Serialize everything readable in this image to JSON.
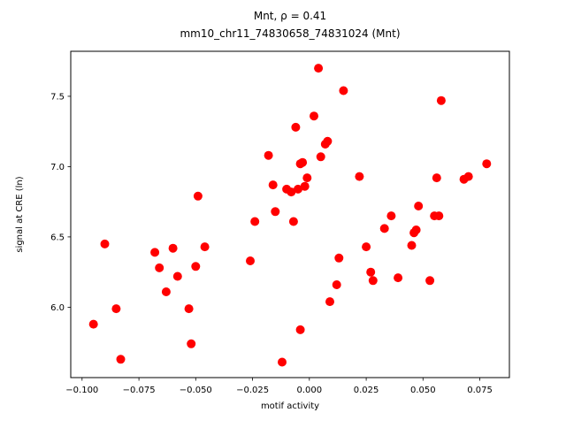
{
  "chart_data": {
    "type": "scatter",
    "title_line1": "Mnt, ρ = 0.41",
    "title_line2": "mm10_chr11_74830658_74831024 (Mnt)",
    "xlabel": "motif activity",
    "ylabel": "signal at CRE (ln)",
    "xlim": [
      -0.105,
      0.088
    ],
    "ylim": [
      5.5,
      7.82
    ],
    "xticks": [
      -0.1,
      -0.075,
      -0.05,
      -0.025,
      0.0,
      0.025,
      0.05,
      0.075
    ],
    "xtick_labels": [
      "−0.100",
      "−0.075",
      "−0.050",
      "−0.025",
      "0.000",
      "0.025",
      "0.050",
      "0.075"
    ],
    "yticks": [
      6.0,
      6.5,
      7.0,
      7.5
    ],
    "ytick_labels": [
      "6.0",
      "6.5",
      "7.0",
      "7.5"
    ],
    "legend": "none",
    "grid": false,
    "marker_color": "#ff0000",
    "marker_radius": 5,
    "points": [
      [
        -0.095,
        5.88
      ],
      [
        -0.09,
        6.45
      ],
      [
        -0.085,
        5.99
      ],
      [
        -0.083,
        5.63
      ],
      [
        -0.068,
        6.39
      ],
      [
        -0.066,
        6.28
      ],
      [
        -0.063,
        6.11
      ],
      [
        -0.06,
        6.42
      ],
      [
        -0.058,
        6.22
      ],
      [
        -0.053,
        5.99
      ],
      [
        -0.052,
        5.74
      ],
      [
        -0.05,
        6.29
      ],
      [
        -0.049,
        6.79
      ],
      [
        -0.046,
        6.43
      ],
      [
        -0.026,
        6.33
      ],
      [
        -0.024,
        6.61
      ],
      [
        -0.018,
        7.08
      ],
      [
        -0.016,
        6.87
      ],
      [
        -0.015,
        6.68
      ],
      [
        -0.012,
        5.61
      ],
      [
        -0.01,
        6.84
      ],
      [
        -0.008,
        6.82
      ],
      [
        -0.007,
        6.61
      ],
      [
        -0.006,
        7.28
      ],
      [
        -0.005,
        6.84
      ],
      [
        -0.004,
        7.02
      ],
      [
        -0.004,
        5.84
      ],
      [
        -0.003,
        7.03
      ],
      [
        -0.002,
        6.86
      ],
      [
        -0.001,
        6.92
      ],
      [
        0.002,
        7.36
      ],
      [
        0.004,
        7.7
      ],
      [
        0.005,
        7.07
      ],
      [
        0.007,
        7.16
      ],
      [
        0.008,
        7.18
      ],
      [
        0.009,
        6.04
      ],
      [
        0.012,
        6.16
      ],
      [
        0.013,
        6.35
      ],
      [
        0.015,
        7.54
      ],
      [
        0.022,
        6.93
      ],
      [
        0.025,
        6.43
      ],
      [
        0.027,
        6.25
      ],
      [
        0.028,
        6.19
      ],
      [
        0.033,
        6.56
      ],
      [
        0.036,
        6.65
      ],
      [
        0.039,
        6.21
      ],
      [
        0.045,
        6.44
      ],
      [
        0.046,
        6.53
      ],
      [
        0.047,
        6.55
      ],
      [
        0.048,
        6.72
      ],
      [
        0.053,
        6.19
      ],
      [
        0.055,
        6.65
      ],
      [
        0.056,
        6.92
      ],
      [
        0.057,
        6.65
      ],
      [
        0.058,
        7.47
      ],
      [
        0.068,
        6.91
      ],
      [
        0.07,
        6.93
      ],
      [
        0.078,
        7.02
      ]
    ]
  }
}
